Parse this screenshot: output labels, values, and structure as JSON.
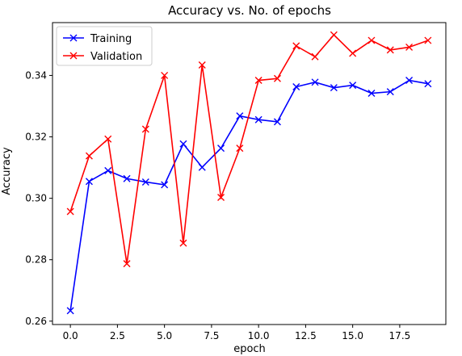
{
  "chart_data": {
    "type": "line",
    "title": "Accuracy vs. No. of epochs",
    "xlabel": "epoch",
    "ylabel": "Accuracy",
    "x": [
      0,
      1,
      2,
      3,
      4,
      5,
      6,
      7,
      8,
      9,
      10,
      11,
      12,
      13,
      14,
      15,
      16,
      17,
      18,
      19
    ],
    "xlim": [
      -0.95,
      19.95
    ],
    "ylim": [
      0.2589,
      0.3572
    ],
    "xticks": [
      0.0,
      2.5,
      5.0,
      7.5,
      10.0,
      12.5,
      15.0,
      17.5
    ],
    "xtick_labels": [
      "0.0",
      "2.5",
      "5.0",
      "7.5",
      "10.0",
      "12.5",
      "15.0",
      "17.5"
    ],
    "yticks": [
      0.26,
      0.28,
      0.3,
      0.32,
      0.34
    ],
    "ytick_labels": [
      "0.26",
      "0.28",
      "0.30",
      "0.32",
      "0.34"
    ],
    "grid": false,
    "legend": "top-left",
    "series": [
      {
        "name": "Training",
        "color": "#0000ff",
        "marker": "x",
        "values": [
          0.2634,
          0.3055,
          0.309,
          0.3064,
          0.3053,
          0.3044,
          0.3177,
          0.3101,
          0.3163,
          0.3268,
          0.3256,
          0.3249,
          0.3363,
          0.3378,
          0.336,
          0.3368,
          0.3342,
          0.3347,
          0.3384,
          0.3373
        ]
      },
      {
        "name": "Validation",
        "color": "#ff0000",
        "marker": "x",
        "values": [
          0.2957,
          0.3138,
          0.3193,
          0.2787,
          0.3225,
          0.34,
          0.2854,
          0.3434,
          0.3003,
          0.3163,
          0.3384,
          0.339,
          0.3496,
          0.3461,
          0.3532,
          0.3472,
          0.3514,
          0.3483,
          0.3492,
          0.3514
        ]
      }
    ]
  }
}
